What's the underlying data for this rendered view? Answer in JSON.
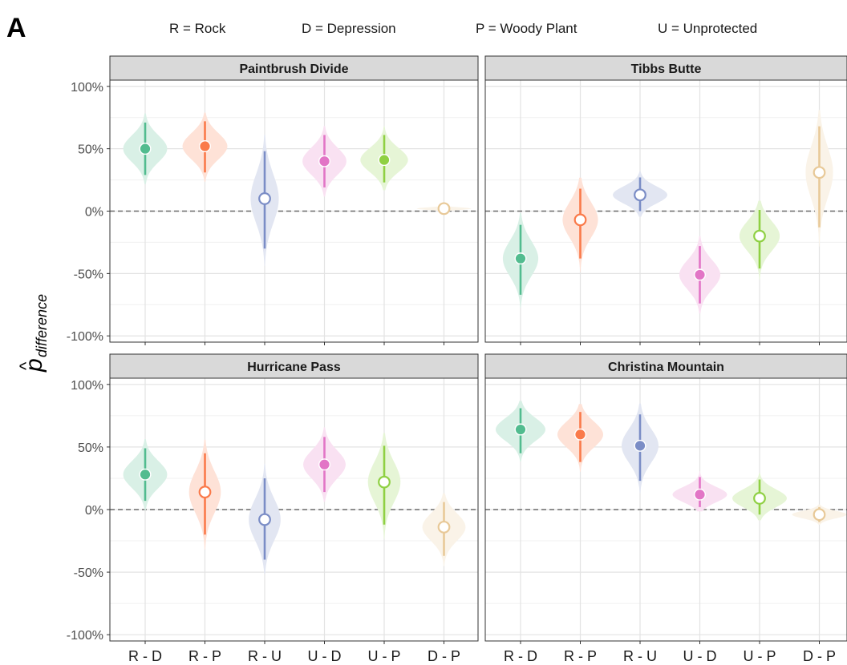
{
  "panel_letter": "A",
  "legend": [
    {
      "abbr": "R",
      "label": "R = Rock"
    },
    {
      "abbr": "D",
      "label": "D = Depression"
    },
    {
      "abbr": "P",
      "label": "P = Woody Plant"
    },
    {
      "abbr": "U",
      "label": "U = Unprotected"
    }
  ],
  "ylabel": {
    "hat": "^",
    "main": "p",
    "sub": "difference"
  },
  "chart_data": {
    "type": "violin-pointrange",
    "categories": [
      "R - D",
      "R - P",
      "R - U",
      "U - D",
      "U - P",
      "D - P"
    ],
    "category_colors": [
      "#52bc8f",
      "#fa7a4a",
      "#7b8dc6",
      "#e275c6",
      "#8fd043",
      "#e8c998"
    ],
    "ylim": [
      -105,
      105
    ],
    "y_ticks": [
      100,
      50,
      0,
      -50,
      -100
    ],
    "y_tick_labels": [
      "100%",
      "50%",
      "0%",
      "-50%",
      "-100%"
    ],
    "reference_line": 0,
    "grid": true,
    "panels": [
      {
        "title": "Paintbrush Divide",
        "estimates": [
          50,
          52,
          10,
          40,
          41,
          2
        ],
        "lower": [
          29,
          31,
          -30,
          19,
          23,
          0
        ],
        "upper": [
          71,
          72,
          48,
          61,
          61,
          4
        ],
        "significant": [
          true,
          true,
          false,
          true,
          true,
          false
        ]
      },
      {
        "title": "Tibbs Butte",
        "estimates": [
          -38,
          -7,
          13,
          -51,
          -20,
          31
        ],
        "lower": [
          -67,
          -38,
          0,
          -74,
          -46,
          -13
        ],
        "upper": [
          -11,
          18,
          27,
          -28,
          1,
          68
        ],
        "significant": [
          true,
          false,
          false,
          true,
          false,
          false
        ]
      },
      {
        "title": "Hurricane Pass",
        "estimates": [
          28,
          14,
          -8,
          36,
          22,
          -14
        ],
        "lower": [
          7,
          -20,
          -40,
          14,
          -12,
          -37
        ],
        "upper": [
          49,
          45,
          25,
          58,
          51,
          6
        ],
        "significant": [
          true,
          false,
          false,
          true,
          false,
          false
        ]
      },
      {
        "title": "Christina Mountain",
        "estimates": [
          64,
          60,
          51,
          12,
          9,
          -4
        ],
        "lower": [
          45,
          38,
          23,
          2,
          -4,
          -10
        ],
        "upper": [
          81,
          78,
          76,
          26,
          24,
          2
        ],
        "significant": [
          true,
          true,
          true,
          true,
          false,
          false
        ]
      }
    ]
  }
}
